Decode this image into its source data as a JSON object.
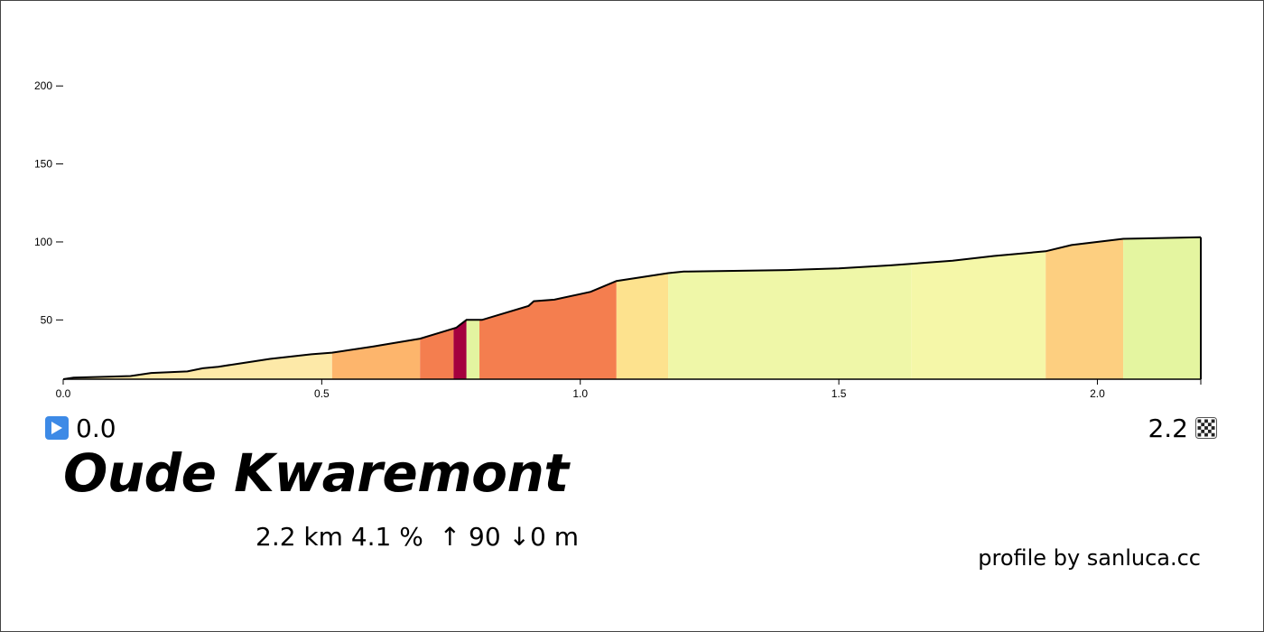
{
  "chart_data": {
    "type": "area",
    "title": "Oude Kwaremont",
    "xlabel": "",
    "ylabel": "",
    "xlim": [
      0,
      2.2
    ],
    "ylim": [
      12,
      225
    ],
    "x_ticks": [
      "0.0",
      "0.5",
      "1.0",
      "1.5",
      "2.0"
    ],
    "x_tick_values": [
      0,
      0.5,
      1.0,
      1.5,
      2.0
    ],
    "y_ticks": [
      "50",
      "100",
      "150",
      "200"
    ],
    "y_tick_values": [
      50,
      100,
      150,
      200
    ],
    "profile": [
      [
        0.0,
        12
      ],
      [
        0.02,
        13
      ],
      [
        0.13,
        14
      ],
      [
        0.17,
        16
      ],
      [
        0.24,
        17
      ],
      [
        0.27,
        19
      ],
      [
        0.3,
        20
      ],
      [
        0.34,
        22
      ],
      [
        0.36,
        23
      ],
      [
        0.4,
        25
      ],
      [
        0.48,
        28
      ],
      [
        0.52,
        29
      ],
      [
        0.6,
        33
      ],
      [
        0.69,
        38
      ],
      [
        0.73,
        42
      ],
      [
        0.76,
        45
      ],
      [
        0.78,
        50
      ],
      [
        0.81,
        50
      ],
      [
        0.85,
        54
      ],
      [
        0.9,
        59
      ],
      [
        0.91,
        62
      ],
      [
        0.95,
        63
      ],
      [
        1.02,
        68
      ],
      [
        1.07,
        75
      ],
      [
        1.17,
        80
      ],
      [
        1.2,
        81
      ],
      [
        1.4,
        82
      ],
      [
        1.5,
        83
      ],
      [
        1.6,
        85
      ],
      [
        1.72,
        88
      ],
      [
        1.8,
        91
      ],
      [
        1.9,
        94
      ],
      [
        1.95,
        98
      ],
      [
        2.05,
        102
      ],
      [
        2.2,
        103
      ]
    ],
    "segments": [
      {
        "from": 0.0,
        "to": 0.52,
        "color": "#fde9a8"
      },
      {
        "from": 0.52,
        "to": 0.69,
        "color": "#fdb56c"
      },
      {
        "from": 0.69,
        "to": 0.755,
        "color": "#f47e4f"
      },
      {
        "from": 0.755,
        "to": 0.78,
        "color": "#a4003e"
      },
      {
        "from": 0.78,
        "to": 0.805,
        "color": "#e3f4a0"
      },
      {
        "from": 0.805,
        "to": 1.07,
        "color": "#f47e4f"
      },
      {
        "from": 1.07,
        "to": 1.17,
        "color": "#fde28e"
      },
      {
        "from": 1.17,
        "to": 1.64,
        "color": "#eff7a8"
      },
      {
        "from": 1.64,
        "to": 1.9,
        "color": "#f5f7a8"
      },
      {
        "from": 1.9,
        "to": 2.05,
        "color": "#fdcf80"
      },
      {
        "from": 2.05,
        "to": 2.2,
        "color": "#e4f5a0"
      }
    ],
    "grid": false,
    "legend": "none"
  },
  "start": {
    "km": "0.0",
    "icon": "play-icon"
  },
  "end": {
    "km": "2.2",
    "icon": "finish-flag-icon"
  },
  "climb": {
    "name": "Oude Kwaremont",
    "stats": "2.2 km 4.1 %  ↑ 90 ↓0 m"
  },
  "credit": "profile by sanluca.cc",
  "colors": {
    "start_icon": "#3d8ae6",
    "outline": "#000000"
  }
}
